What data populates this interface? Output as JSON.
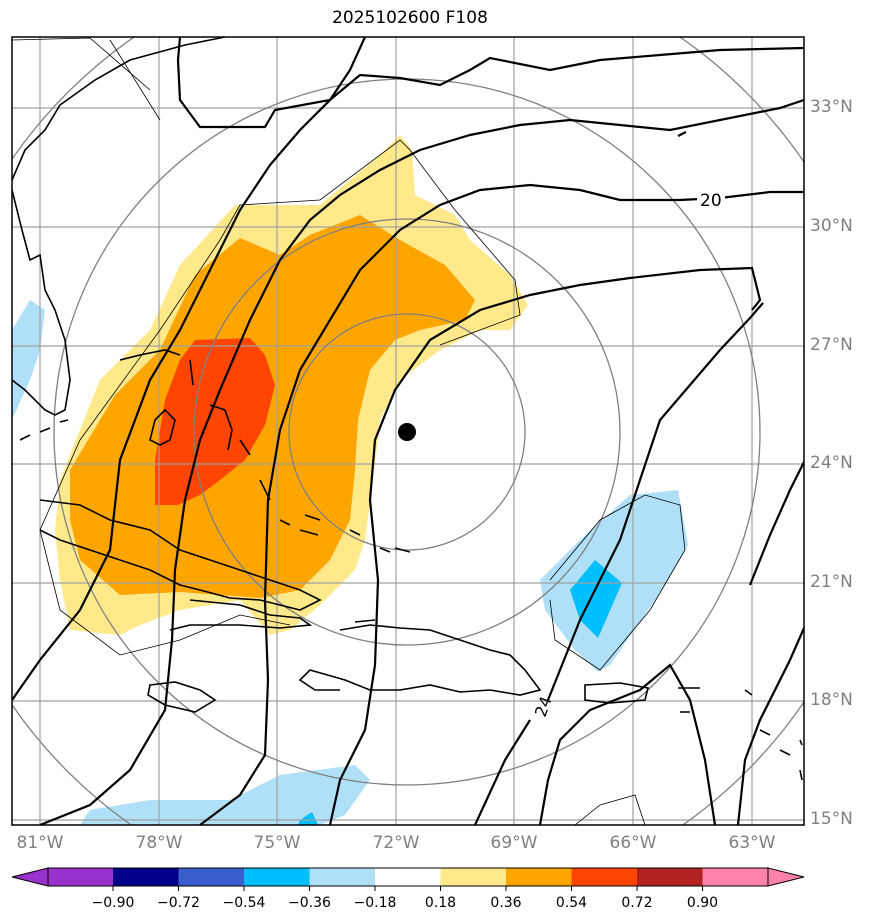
{
  "title": "2025102600 F108",
  "lat_labels": [
    "33°N",
    "30°N",
    "27°N",
    "24°N",
    "21°N",
    "18°N",
    "15°N"
  ],
  "lon_labels": [
    "81°W",
    "78°W",
    "75°W",
    "72°W",
    "69°W",
    "66°W",
    "63°W"
  ],
  "contour_labels": [
    "20",
    "24"
  ],
  "colorbar": {
    "ticks": [
      "−0.90",
      "−0.72",
      "−0.54",
      "−0.36",
      "−0.18",
      "0.18",
      "0.36",
      "0.54",
      "0.72",
      "0.90"
    ],
    "colors": [
      "#9932cc",
      "#00008b",
      "#3a5fcd",
      "#00bfff",
      "#b0e0f8",
      "#ffffff",
      "#ffe98a",
      "#ffa500",
      "#ff4500",
      "#b22222",
      "#ff82ab"
    ]
  },
  "colors": {
    "light_yellow": "#ffe98a",
    "orange": "#ffa500",
    "red_orange": "#ff4500",
    "light_blue": "#b0e0f8",
    "deep_sky_blue": "#00bfff",
    "grid": "#a0a0a0",
    "range_rings": "#808080"
  },
  "storm_center": {
    "lat": "24.8°N",
    "lon": "71.8°W"
  }
}
